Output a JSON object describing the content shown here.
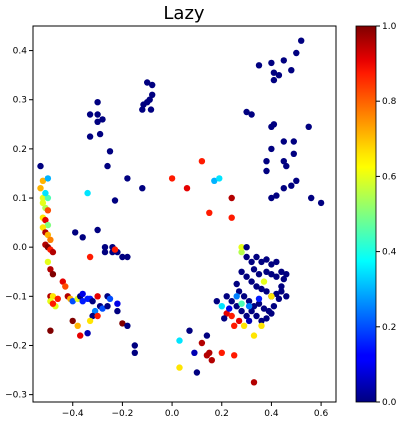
{
  "chart_data": {
    "type": "scatter",
    "title": "Lazy",
    "xlabel": "",
    "ylabel": "",
    "xlim": [
      -0.56,
      0.66
    ],
    "ylim": [
      -0.315,
      0.45
    ],
    "xticks": [
      -0.4,
      -0.2,
      0.0,
      0.2,
      0.4,
      0.6
    ],
    "xtick_labels": [
      "−0.4",
      "−0.2",
      "0.0",
      "0.2",
      "0.4",
      "0.6"
    ],
    "yticks": [
      -0.3,
      -0.2,
      -0.1,
      0.0,
      0.1,
      0.2,
      0.3,
      0.4
    ],
    "ytick_labels": [
      "−0.3",
      "−0.2",
      "−0.1",
      "0.0",
      "0.1",
      "0.2",
      "0.3",
      "0.4"
    ],
    "grid": false,
    "colormap": "jet",
    "colorbar": {
      "range": [
        0.0,
        1.0
      ],
      "ticks": [
        0.0,
        0.2,
        0.4,
        0.6,
        0.8,
        1.0
      ],
      "tick_labels": [
        "0.0",
        "0.2",
        "0.4",
        "0.6",
        "0.8",
        "1.0"
      ]
    },
    "points": [
      [
        0.52,
        0.42,
        0.0
      ],
      [
        0.5,
        0.395,
        0.0
      ],
      [
        0.45,
        0.38,
        0.0
      ],
      [
        0.4,
        0.375,
        0.0
      ],
      [
        0.41,
        0.355,
        0.0
      ],
      [
        0.35,
        0.37,
        0.0
      ],
      [
        0.43,
        0.35,
        0.0
      ],
      [
        0.48,
        0.36,
        0.0
      ],
      [
        0.41,
        0.34,
        0.0
      ],
      [
        0.3,
        0.275,
        0.0
      ],
      [
        0.32,
        0.27,
        0.0
      ],
      [
        0.55,
        0.245,
        0.0
      ],
      [
        0.4,
        0.245,
        0.0
      ],
      [
        0.41,
        0.25,
        0.0
      ],
      [
        0.45,
        0.215,
        0.0
      ],
      [
        0.49,
        0.215,
        0.0
      ],
      [
        0.4,
        0.2,
        0.0
      ],
      [
        0.38,
        0.175,
        0.0
      ],
      [
        0.45,
        0.175,
        0.0
      ],
      [
        0.49,
        0.19,
        0.0
      ],
      [
        0.46,
        0.165,
        0.0
      ],
      [
        0.38,
        0.155,
        0.0
      ],
      [
        0.5,
        0.135,
        0.0
      ],
      [
        0.48,
        0.125,
        0.0
      ],
      [
        0.45,
        0.12,
        0.0
      ],
      [
        0.42,
        0.105,
        0.0
      ],
      [
        0.4,
        0.1,
        0.0
      ],
      [
        0.56,
        0.1,
        0.0
      ],
      [
        0.6,
        0.09,
        0.0
      ],
      [
        -0.1,
        0.335,
        0.0
      ],
      [
        -0.08,
        0.33,
        0.0
      ],
      [
        -0.08,
        0.31,
        0.0
      ],
      [
        -0.09,
        0.3,
        0.0
      ],
      [
        -0.1,
        0.295,
        0.0
      ],
      [
        -0.115,
        0.29,
        0.0
      ],
      [
        -0.12,
        0.28,
        0.0
      ],
      [
        -0.085,
        0.28,
        0.0
      ],
      [
        -0.3,
        0.295,
        0.0
      ],
      [
        -0.33,
        0.27,
        0.0
      ],
      [
        -0.3,
        0.27,
        0.0
      ],
      [
        -0.3,
        0.255,
        0.0
      ],
      [
        -0.28,
        0.26,
        0.0
      ],
      [
        -0.29,
        0.23,
        0.0
      ],
      [
        -0.33,
        0.225,
        0.0
      ],
      [
        -0.25,
        0.195,
        0.0
      ],
      [
        -0.26,
        0.165,
        0.0
      ],
      [
        -0.18,
        0.14,
        0.0
      ],
      [
        -0.23,
        0.095,
        0.0
      ],
      [
        -0.34,
        0.11,
        0.35
      ],
      [
        -0.53,
        0.165,
        0.0
      ],
      [
        -0.3,
        0.035,
        0.0
      ],
      [
        -0.39,
        0.03,
        0.0
      ],
      [
        -0.36,
        0.02,
        0.0
      ],
      [
        -0.27,
        0.0,
        0.0
      ],
      [
        -0.24,
        0.0,
        0.0
      ],
      [
        -0.27,
        -0.01,
        0.0
      ],
      [
        -0.24,
        -0.01,
        0.0
      ],
      [
        -0.22,
        -0.01,
        0.0
      ],
      [
        -0.2,
        -0.02,
        0.0
      ],
      [
        -0.18,
        -0.02,
        0.0
      ],
      [
        -0.33,
        -0.02,
        0.85
      ],
      [
        -0.23,
        -0.005,
        0.85
      ],
      [
        -0.52,
        0.135,
        0.7
      ],
      [
        -0.5,
        0.14,
        0.3
      ],
      [
        -0.53,
        0.12,
        0.7
      ],
      [
        -0.52,
        0.1,
        0.6
      ],
      [
        -0.51,
        0.08,
        0.55
      ],
      [
        -0.5,
        0.075,
        0.8
      ],
      [
        -0.52,
        0.06,
        0.65
      ],
      [
        -0.51,
        0.055,
        0.9
      ],
      [
        -0.5,
        0.045,
        0.5
      ],
      [
        -0.52,
        0.04,
        0.65
      ],
      [
        -0.51,
        0.03,
        0.95
      ],
      [
        -0.5,
        0.025,
        0.7
      ],
      [
        -0.49,
        0.015,
        0.75
      ],
      [
        -0.51,
        0.005,
        0.95
      ],
      [
        -0.5,
        0.0,
        1.0
      ],
      [
        -0.49,
        -0.005,
        0.85
      ],
      [
        -0.48,
        -0.01,
        0.95
      ],
      [
        -0.5,
        -0.03,
        0.6
      ],
      [
        -0.49,
        -0.045,
        0.95
      ],
      [
        -0.48,
        -0.055,
        1.0
      ],
      [
        -0.5,
        0.1,
        0.45
      ],
      [
        -0.51,
        0.11,
        0.35
      ],
      [
        -0.52,
        0.09,
        0.6
      ],
      [
        -0.49,
        -0.1,
        0.95
      ],
      [
        -0.48,
        -0.1,
        0.65
      ],
      [
        -0.49,
        -0.11,
        0.6
      ],
      [
        -0.47,
        -0.12,
        0.6
      ],
      [
        -0.48,
        -0.115,
        0.85
      ],
      [
        -0.46,
        -0.105,
        0.85
      ],
      [
        -0.44,
        -0.07,
        0.9
      ],
      [
        -0.43,
        -0.08,
        0.8
      ],
      [
        -0.42,
        -0.1,
        0.95
      ],
      [
        -0.41,
        -0.105,
        0.7
      ],
      [
        -0.4,
        -0.11,
        0.2
      ],
      [
        -0.38,
        -0.105,
        0.6
      ],
      [
        -0.37,
        -0.1,
        0.0
      ],
      [
        -0.36,
        -0.11,
        0.15
      ],
      [
        -0.36,
        -0.095,
        0.1
      ],
      [
        -0.34,
        -0.105,
        0.15
      ],
      [
        -0.33,
        -0.105,
        0.15
      ],
      [
        -0.32,
        -0.11,
        0.0
      ],
      [
        -0.3,
        -0.1,
        0.9
      ],
      [
        -0.29,
        -0.12,
        0.0
      ],
      [
        -0.31,
        -0.13,
        0.25
      ],
      [
        -0.32,
        -0.14,
        0.0
      ],
      [
        -0.33,
        -0.15,
        0.65
      ],
      [
        -0.3,
        -0.14,
        0.85
      ],
      [
        -0.28,
        -0.125,
        0.2
      ],
      [
        -0.34,
        -0.175,
        0.05
      ],
      [
        -0.37,
        -0.18,
        0.9
      ],
      [
        -0.4,
        -0.15,
        1.0
      ],
      [
        -0.38,
        -0.16,
        0.7
      ],
      [
        -0.49,
        -0.17,
        1.0
      ],
      [
        -0.26,
        -0.1,
        0.0
      ],
      [
        -0.25,
        -0.105,
        0.2
      ],
      [
        -0.26,
        -0.12,
        0.0
      ],
      [
        -0.22,
        -0.115,
        0.1
      ],
      [
        -0.22,
        -0.13,
        0.0
      ],
      [
        -0.2,
        -0.155,
        1.0
      ],
      [
        -0.18,
        -0.16,
        0.0
      ],
      [
        -0.15,
        -0.2,
        0.0
      ],
      [
        -0.15,
        -0.215,
        0.0
      ],
      [
        -0.12,
        0.12,
        0.0
      ],
      [
        0.0,
        0.14,
        0.85
      ],
      [
        0.06,
        0.12,
        0.9
      ],
      [
        0.12,
        0.175,
        0.85
      ],
      [
        0.17,
        0.135,
        0.3
      ],
      [
        0.19,
        0.14,
        0.35
      ],
      [
        0.15,
        0.07,
        0.85
      ],
      [
        0.24,
        0.1,
        0.95
      ],
      [
        0.24,
        0.06,
        0.85
      ],
      [
        0.03,
        -0.19,
        0.35
      ],
      [
        0.07,
        -0.17,
        0.0
      ],
      [
        0.03,
        -0.245,
        0.65
      ],
      [
        0.1,
        -0.255,
        0.0
      ],
      [
        0.09,
        -0.215,
        0.05
      ],
      [
        0.12,
        -0.195,
        0.95
      ],
      [
        0.14,
        -0.18,
        0.0
      ],
      [
        0.15,
        -0.215,
        0.95
      ],
      [
        0.16,
        -0.23,
        0.95
      ],
      [
        0.2,
        -0.215,
        0.85
      ],
      [
        0.25,
        -0.22,
        0.85
      ],
      [
        0.33,
        -0.275,
        0.95
      ],
      [
        0.14,
        -0.22,
        0.95
      ],
      [
        0.28,
        -0.01,
        0.55
      ],
      [
        0.28,
        0.0,
        0.6
      ],
      [
        0.3,
        0.0,
        0.0
      ],
      [
        0.3,
        -0.02,
        0.0
      ],
      [
        0.32,
        -0.03,
        0.0
      ],
      [
        0.34,
        -0.02,
        0.0
      ],
      [
        0.36,
        -0.03,
        0.0
      ],
      [
        0.38,
        -0.025,
        0.0
      ],
      [
        0.4,
        -0.035,
        0.0
      ],
      [
        0.42,
        -0.03,
        0.0
      ],
      [
        0.38,
        -0.05,
        0.0
      ],
      [
        0.4,
        -0.055,
        0.0
      ],
      [
        0.42,
        -0.06,
        0.0
      ],
      [
        0.44,
        -0.05,
        0.0
      ],
      [
        0.46,
        -0.055,
        0.0
      ],
      [
        0.28,
        -0.05,
        0.0
      ],
      [
        0.3,
        -0.06,
        0.0
      ],
      [
        0.32,
        -0.07,
        0.0
      ],
      [
        0.34,
        -0.08,
        0.0
      ],
      [
        0.36,
        -0.085,
        0.0
      ],
      [
        0.38,
        -0.09,
        0.0
      ],
      [
        0.4,
        -0.1,
        0.0
      ],
      [
        0.42,
        -0.095,
        0.0
      ],
      [
        0.44,
        -0.09,
        0.0
      ],
      [
        0.46,
        -0.1,
        0.0
      ],
      [
        0.26,
        -0.075,
        0.0
      ],
      [
        0.27,
        -0.09,
        0.0
      ],
      [
        0.29,
        -0.1,
        0.0
      ],
      [
        0.31,
        -0.11,
        0.0
      ],
      [
        0.33,
        -0.12,
        0.0
      ],
      [
        0.35,
        -0.115,
        0.0
      ],
      [
        0.37,
        -0.125,
        0.0
      ],
      [
        0.39,
        -0.13,
        0.0
      ],
      [
        0.41,
        -0.12,
        0.0
      ],
      [
        0.43,
        -0.105,
        0.0
      ],
      [
        0.22,
        -0.1,
        0.0
      ],
      [
        0.24,
        -0.11,
        0.0
      ],
      [
        0.26,
        -0.12,
        0.0
      ],
      [
        0.28,
        -0.13,
        0.0
      ],
      [
        0.3,
        -0.14,
        0.0
      ],
      [
        0.32,
        -0.13,
        0.0
      ],
      [
        0.34,
        -0.14,
        0.0
      ],
      [
        0.36,
        -0.15,
        0.0
      ],
      [
        0.38,
        -0.145,
        0.0
      ],
      [
        0.4,
        -0.135,
        0.0
      ],
      [
        0.2,
        -0.12,
        0.35
      ],
      [
        0.22,
        -0.135,
        0.9
      ],
      [
        0.24,
        -0.14,
        0.85
      ],
      [
        0.25,
        -0.16,
        0.85
      ],
      [
        0.27,
        -0.15,
        0.9
      ],
      [
        0.29,
        -0.16,
        0.65
      ],
      [
        0.33,
        -0.18,
        0.65
      ],
      [
        0.36,
        -0.16,
        0.65
      ],
      [
        0.31,
        -0.12,
        0.25
      ],
      [
        0.28,
        -0.115,
        0.45
      ],
      [
        0.37,
        -0.07,
        0.6
      ],
      [
        0.4,
        -0.1,
        0.65
      ],
      [
        0.31,
        -0.15,
        0.05
      ],
      [
        0.35,
        -0.105,
        0.15
      ],
      [
        0.21,
        -0.145,
        0.0
      ],
      [
        0.44,
        -0.08,
        0.0
      ],
      [
        0.45,
        -0.065,
        0.0
      ],
      [
        0.33,
        -0.045,
        0.0
      ],
      [
        0.35,
        -0.055,
        0.0
      ],
      [
        0.26,
        -0.1,
        0.25
      ],
      [
        0.18,
        -0.11,
        0.0
      ],
      [
        0.23,
        -0.125,
        0.1
      ]
    ]
  }
}
